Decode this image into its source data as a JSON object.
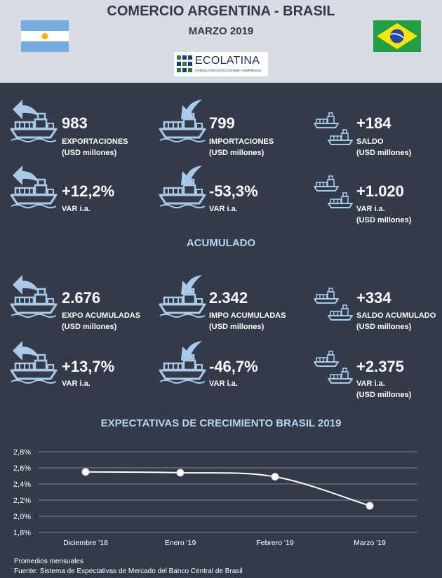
{
  "header": {
    "title": "COMERCIO ARGENTINA - BRASIL",
    "subtitle": "MARZO 2019",
    "logo_name": "ECOLATINA",
    "logo_tagline": "CONSULTORA EN ECONOMÍA Y EMPRESAS"
  },
  "monthly": {
    "exports": {
      "value": "983",
      "label": "EXPORTACIONES",
      "unit": "(USD millones)"
    },
    "imports": {
      "value": "799",
      "label": "IMPORTACIONES",
      "unit": "(USD millones)"
    },
    "balance": {
      "value": "+184",
      "label": "SALDO",
      "unit": "(USD millones)"
    },
    "exports_var": {
      "value": "+12,2%",
      "label": "VAR i.a."
    },
    "imports_var": {
      "value": "-53,3%",
      "label": "VAR i.a."
    },
    "balance_var": {
      "value": "+1.020",
      "label": "VAR i.a.",
      "unit": "(USD millones)"
    }
  },
  "accumulated": {
    "section_title": "ACUMULADO",
    "exports": {
      "value": "2.676",
      "label": "EXPO ACUMULADAS",
      "unit": "(USD millones)"
    },
    "imports": {
      "value": "2.342",
      "label": "IMPO ACUMULADAS",
      "unit": "(USD millones)"
    },
    "balance": {
      "value": "+334",
      "label": "SALDO ACUMULADO",
      "unit": "(USD millones)"
    },
    "exports_var": {
      "value": "+13,7%",
      "label": "VAR i.a."
    },
    "imports_var": {
      "value": "-46,7%",
      "label": "VAR i.a."
    },
    "balance_var": {
      "value": "+2.375",
      "label": "VAR i.a.",
      "unit": "(USD millones)"
    }
  },
  "colors": {
    "background": "#333b4a",
    "header_bg": "#d8dce3",
    "icon": "#a9c9e8",
    "accent_title": "#b7d3ee",
    "line": "#ffffff"
  },
  "icons": {
    "exports": "ship-export-arrow-icon",
    "imports": "ship-import-arrow-icon",
    "balance": "two-ships-icon",
    "flag_left": "argentina-flag",
    "flag_right": "brazil-flag"
  },
  "chart_data": {
    "type": "line",
    "title": "EXPECTATIVAS DE CRECIMIENTO BRASIL 2019",
    "categories": [
      "Diciembre '18",
      "Enero '19",
      "Febrero '19",
      "Marzo '19"
    ],
    "series": [
      {
        "values": [
          2.55,
          2.54,
          2.49,
          2.13
        ]
      }
    ],
    "yticks": [
      "1,8%",
      "2,0%",
      "2,2%",
      "2,4%",
      "2,6%",
      "2,8%"
    ],
    "ytick_values": [
      1.8,
      2.0,
      2.2,
      2.4,
      2.6,
      2.8
    ],
    "ylim": [
      1.8,
      2.8
    ],
    "grid": true,
    "xlabel": "",
    "ylabel": ""
  },
  "footer": {
    "note": "Promedios mensuales",
    "source": "Fuente: Sistema de Expectativas de Mercado del Banco Central de Brasil"
  }
}
